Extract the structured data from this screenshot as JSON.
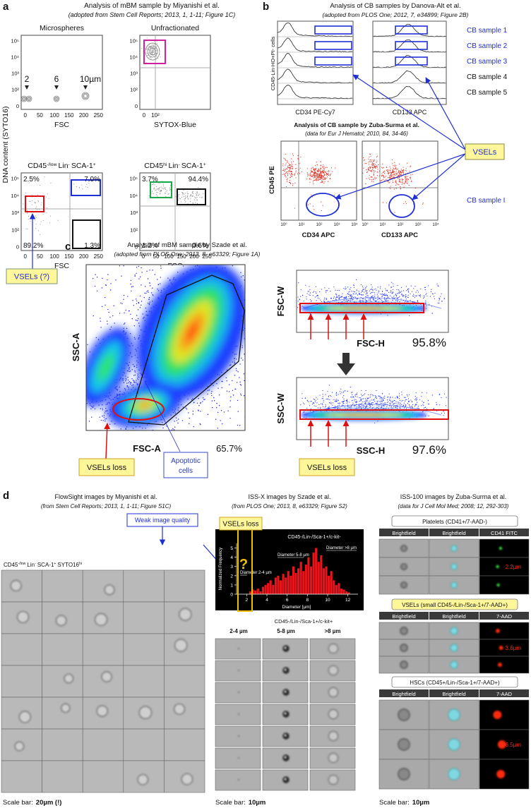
{
  "panel_a": {
    "label": "a",
    "title": "Analysis of mBM sample by Miyanishi et al.",
    "subtitle": "(adopted from Stem Cell Reports; 2013, 1, 1-11; Figure 1C)",
    "y_label": "DNA content (SYTO16)",
    "plots": [
      {
        "title": [
          "Microspheres"
        ],
        "x_label": "FSC",
        "x_ticks": [
          "0",
          "50",
          "100",
          "150",
          "200",
          "250"
        ],
        "y_ticks": [
          "0",
          "10²",
          "10³",
          "10⁴",
          "10⁵"
        ],
        "bead_labels": [
          "2",
          "6",
          "10µm"
        ]
      },
      {
        "title": [
          "Unfractionated"
        ],
        "x_label": "SYTOX-Blue",
        "x_ticks": [
          "0",
          "10²"
        ],
        "y_ticks": [
          "0",
          "10²",
          "10³",
          "10⁴",
          "10⁵"
        ]
      },
      {
        "title": [
          "CD45",
          "-/low",
          "Lin",
          "-",
          "SCA-1",
          "+"
        ],
        "x_label": "FSC",
        "x_ticks": [
          "0",
          "50",
          "100",
          "150",
          "200",
          "250"
        ],
        "y_ticks": [
          "0",
          "10²",
          "10³",
          "10⁴",
          "10⁵"
        ],
        "quadrants": [
          "2.5%",
          "7.0%",
          "89.2%",
          "1.3%"
        ]
      },
      {
        "title": [
          "CD45",
          "hi",
          "Lin",
          "-",
          "SCA-1",
          "+"
        ],
        "x_label": "FSC",
        "x_ticks": [
          "0",
          "50",
          "100",
          "150",
          "200",
          "250"
        ],
        "y_ticks": [
          "0",
          "10²",
          "10³",
          "10⁴",
          "10⁵"
        ],
        "quadrants": [
          "3.7%",
          "94.4%",
          "1.2%",
          "0.6%"
        ]
      }
    ],
    "callout": "VSELs (?)"
  },
  "panel_b": {
    "label": "b",
    "title": "Analysis of CB samples by Danova-Alt et al.",
    "subtitle": "(adopted from PLOS One; 2012, 7, e34899; Figure 2B)",
    "y_label": "CD45-Lin-HO+PI- cells",
    "x_labels": [
      "CD34 PE-Cy7",
      "CD133 APC"
    ],
    "samples": [
      "CB sample 1",
      "CB sample 2",
      "CB sample 3",
      "CB sample 4",
      "CB sample 5"
    ],
    "callout": "VSELs",
    "zuba": {
      "title": "Analysis of CB sample by Zuba-Surma et al.",
      "subtitle": "(data for Eur J Hematol; 2010, 84, 34-46)",
      "y_label": "CD45 PE",
      "x_labels": [
        "CD34 APC",
        "CD133 APC"
      ],
      "ticks": [
        "10⁰",
        "10¹",
        "10²",
        "10³",
        "10⁴"
      ],
      "sample": "CB sample I"
    }
  },
  "panel_c": {
    "label": "c",
    "title": "Analysis of mBM sample by Szade et al.",
    "subtitle": "(adopted from PLOS One; 2013, 8, e63329; Figure 1A)",
    "main": {
      "y_label": "SSC-A",
      "x_label": "FSC-A",
      "percent": "65.7%",
      "callout": "VSELs loss",
      "apoptotic": [
        "Apoptotic",
        "cells"
      ]
    },
    "top": {
      "y_label": "FSC-W",
      "x_label": "FSC-H",
      "percent": "95.8%"
    },
    "bottom": {
      "y_label": "SSC-W",
      "x_label": "SSC-H",
      "percent": "97.6%"
    },
    "callout": "VSELs loss"
  },
  "panel_d": {
    "label": "d",
    "flowsight": {
      "title": "FlowSight images by Miyanishi et al.",
      "subtitle": "(from Stem Cell Reports; 2013, 1, 1-11; Figure S1C)",
      "note": "Weak image quality",
      "population": [
        "CD45",
        "-/low",
        "Lin",
        "-",
        "SCA-1",
        "+",
        "SYTO16",
        "hi"
      ],
      "scale_label": "Scale bar:",
      "scale_value": "20µm (!)"
    },
    "issx": {
      "title": "ISS-X images by Szade et al.",
      "subtitle": "(from PLOS One; 2013, 8, e63329; Figure S2)",
      "callout": "VSELs loss",
      "histogram": {
        "title": "CD45-/Lin-/Sca-1+/c-kit-",
        "y_label": "Normalized Frequency",
        "x_label": "Diameter [µm]",
        "bins": [
          2.25,
          2.5,
          2.75,
          3,
          3.25,
          3.5,
          3.75,
          4,
          4.25,
          4.5,
          4.75,
          5,
          5.25,
          5.5,
          5.75,
          6,
          6.25,
          6.5,
          6.75,
          7,
          7.25,
          7.5,
          7.75,
          8,
          8.25,
          8.5,
          8.75,
          9,
          9.25,
          9.5,
          9.75,
          10,
          10.25,
          10.5,
          10.75,
          11,
          11.25,
          11.5,
          11.75,
          12,
          12.25
        ],
        "values": [
          0.3,
          0.5,
          0.4,
          0.6,
          0.3,
          0.8,
          1.0,
          1.2,
          1.5,
          1.0,
          1.8,
          2.0,
          1.5,
          2.2,
          1.8,
          2.5,
          2.0,
          3.0,
          2.3,
          2.8,
          3.5,
          2.5,
          3.2,
          4.0,
          3.0,
          4.5,
          5.0,
          3.5,
          4.2,
          2.8,
          3.0,
          2.0,
          2.5,
          1.5,
          1.0,
          1.2,
          0.6,
          0.5,
          0.3,
          0.2
        ],
        "xlim": [
          1,
          13
        ],
        "ylim": [
          0,
          5.5
        ],
        "xticks": [
          2,
          4,
          6,
          8,
          10,
          12
        ],
        "yticks": [
          0,
          1,
          2,
          3,
          4,
          5
        ],
        "ranges": [
          "Diameter 2-4 µm",
          "Diameter 5-8 µm",
          "Diameter >8 µm"
        ],
        "question": "?"
      },
      "population": "CD45-/Lin-/Sca-1+/c-kit+",
      "columns": [
        "2-4 µm",
        "5-8 µm",
        ">8 µm"
      ],
      "scale_label": "Scale bar:",
      "scale_value": "10µm"
    },
    "iss100": {
      "title": "ISS-100 images by Zuba-Surma et al.",
      "subtitle": "(data for J Cell Mol Med; 2008; 12, 292-303)",
      "groups": [
        {
          "name": "Platelets (CD41+/7-AAD-)",
          "channels": [
            "Brightfield",
            "Brightfield",
            "CD41 FITC"
          ],
          "size": "2.2µm"
        },
        {
          "name": "VSELs (small CD45-/Lin-/Sca-1+/7-AAD+)",
          "channels": [
            "Brightfield",
            "Brightfield",
            "7-AAD"
          ],
          "size": "3.6µm"
        },
        {
          "name": "HSCs (CD45+/Lin-/Sca-1+/7-AAD+)",
          "channels": [
            "Brightfield",
            "Brightfield",
            "7-AAD"
          ],
          "size": "6.5µm"
        }
      ],
      "scale_label": "Scale bar:",
      "scale_value": "10µm"
    }
  }
}
